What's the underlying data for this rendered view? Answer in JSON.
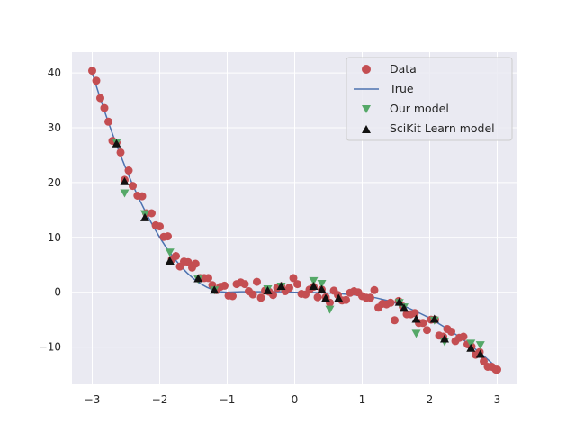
{
  "chart_data": {
    "type": "scatter",
    "title": "",
    "xlabel": "",
    "ylabel": "",
    "xlim": [
      -3.3,
      3.3
    ],
    "ylim": [
      -16.8,
      43.8
    ],
    "grid": true,
    "legend_position": "top-right",
    "x_ticks": [
      -3,
      -2,
      -1,
      0,
      1,
      2,
      3
    ],
    "y_ticks": [
      -10,
      0,
      10,
      20,
      30,
      40
    ],
    "x_tick_labels": [
      "−3",
      "−2",
      "−1",
      "0",
      "1",
      "2",
      "3"
    ],
    "y_tick_labels": [
      "−10",
      "0",
      "10",
      "20",
      "30",
      "40"
    ],
    "colors": {
      "plot_bg": "#eaeaf2",
      "grid": "#ffffff",
      "data": "#c44e52",
      "true": "#4c72b0",
      "ours": "#55a868",
      "sklearn": "#111111"
    },
    "legend": [
      {
        "key": "data",
        "label": "Data",
        "marker": "circle"
      },
      {
        "key": "true",
        "label": "True",
        "marker": "line"
      },
      {
        "key": "ours",
        "label": "Our model",
        "marker": "triangle-down"
      },
      {
        "key": "sklearn",
        "label": "SciKit Learn model",
        "marker": "triangle-up"
      }
    ],
    "series": [
      {
        "key": "data",
        "marker": "circle",
        "points": [
          [
            -3.0,
            40.4
          ],
          [
            -2.94,
            38.6
          ],
          [
            -2.88,
            35.4
          ],
          [
            -2.82,
            33.6
          ],
          [
            -2.76,
            31.1
          ],
          [
            -2.7,
            27.6
          ],
          [
            -2.64,
            27.3
          ],
          [
            -2.58,
            25.5
          ],
          [
            -2.52,
            20.5
          ],
          [
            -2.46,
            22.2
          ],
          [
            -2.4,
            19.4
          ],
          [
            -2.33,
            17.6
          ],
          [
            -2.26,
            17.5
          ],
          [
            -2.2,
            14.4
          ],
          [
            -2.12,
            14.4
          ],
          [
            -2.06,
            12.2
          ],
          [
            -2.0,
            12.0
          ],
          [
            -1.94,
            10.1
          ],
          [
            -1.88,
            10.2
          ],
          [
            -1.82,
            6.0
          ],
          [
            -1.76,
            6.6
          ],
          [
            -1.7,
            4.7
          ],
          [
            -1.64,
            5.6
          ],
          [
            -1.58,
            5.5
          ],
          [
            -1.52,
            4.5
          ],
          [
            -1.47,
            5.2
          ],
          [
            -1.4,
            2.6
          ],
          [
            -1.34,
            2.6
          ],
          [
            -1.28,
            2.6
          ],
          [
            -1.22,
            1.3
          ],
          [
            -1.16,
            0.4
          ],
          [
            -1.1,
            1.0
          ],
          [
            -1.04,
            1.2
          ],
          [
            -0.98,
            -0.6
          ],
          [
            -0.92,
            -0.7
          ],
          [
            -0.86,
            1.5
          ],
          [
            -0.8,
            1.8
          ],
          [
            -0.74,
            1.5
          ],
          [
            -0.68,
            0.2
          ],
          [
            -0.62,
            -0.4
          ],
          [
            -0.56,
            1.9
          ],
          [
            -0.5,
            -1.0
          ],
          [
            -0.44,
            0.3
          ],
          [
            -0.38,
            0.1
          ],
          [
            -0.32,
            -0.5
          ],
          [
            -0.26,
            0.8
          ],
          [
            -0.2,
            1.1
          ],
          [
            -0.14,
            0.2
          ],
          [
            -0.08,
            0.8
          ],
          [
            -0.02,
            2.6
          ],
          [
            0.04,
            1.5
          ],
          [
            0.1,
            -0.3
          ],
          [
            0.16,
            -0.4
          ],
          [
            0.22,
            0.5
          ],
          [
            0.28,
            1.0
          ],
          [
            0.34,
            -0.9
          ],
          [
            0.4,
            0.5
          ],
          [
            0.46,
            -0.9
          ],
          [
            0.52,
            -1.9
          ],
          [
            0.58,
            0.3
          ],
          [
            0.64,
            -0.5
          ],
          [
            0.7,
            -1.5
          ],
          [
            0.76,
            -1.4
          ],
          [
            0.82,
            -0.1
          ],
          [
            0.88,
            0.2
          ],
          [
            0.94,
            0.0
          ],
          [
            1.0,
            -0.7
          ],
          [
            1.06,
            -1.0
          ],
          [
            1.12,
            -1.0
          ],
          [
            1.18,
            0.4
          ],
          [
            1.24,
            -2.8
          ],
          [
            1.3,
            -2.1
          ],
          [
            1.36,
            -2.2
          ],
          [
            1.42,
            -1.9
          ],
          [
            1.48,
            -5.1
          ],
          [
            1.54,
            -1.6
          ],
          [
            1.6,
            -2.6
          ],
          [
            1.66,
            -4.0
          ],
          [
            1.72,
            -4.0
          ],
          [
            1.78,
            -3.8
          ],
          [
            1.84,
            -5.6
          ],
          [
            1.9,
            -5.6
          ],
          [
            1.96,
            -6.9
          ],
          [
            2.02,
            -5.0
          ],
          [
            2.08,
            -5.0
          ],
          [
            2.14,
            -7.9
          ],
          [
            2.2,
            -8.1
          ],
          [
            2.26,
            -6.7
          ],
          [
            2.32,
            -7.2
          ],
          [
            2.38,
            -8.9
          ],
          [
            2.44,
            -8.3
          ],
          [
            2.5,
            -8.1
          ],
          [
            2.56,
            -9.5
          ],
          [
            2.62,
            -9.9
          ],
          [
            2.68,
            -11.4
          ],
          [
            2.74,
            -10.9
          ],
          [
            2.8,
            -12.6
          ],
          [
            2.86,
            -13.6
          ],
          [
            2.92,
            -13.6
          ],
          [
            2.98,
            -14.1
          ],
          [
            3.0,
            -14.1
          ]
        ]
      },
      {
        "key": "true",
        "marker": "line",
        "points": [
          [
            -3.0,
            40.0
          ],
          [
            -2.9,
            36.1
          ],
          [
            -2.8,
            32.4
          ],
          [
            -2.7,
            28.9
          ],
          [
            -2.6,
            25.6
          ],
          [
            -2.5,
            22.5
          ],
          [
            -2.4,
            19.6
          ],
          [
            -2.3,
            16.9
          ],
          [
            -2.2,
            14.4
          ],
          [
            -2.1,
            12.1
          ],
          [
            -2.0,
            10.0
          ],
          [
            -1.9,
            8.1
          ],
          [
            -1.8,
            6.4
          ],
          [
            -1.7,
            4.9
          ],
          [
            -1.6,
            3.6
          ],
          [
            -1.5,
            2.5
          ],
          [
            -1.4,
            1.6
          ],
          [
            -1.3,
            0.9
          ],
          [
            -1.2,
            0.4
          ],
          [
            -1.1,
            0.1
          ],
          [
            -1.0,
            0.0
          ],
          [
            -0.8,
            0.1
          ],
          [
            -0.6,
            0.1
          ],
          [
            -0.4,
            0.1
          ],
          [
            -0.2,
            0.1
          ],
          [
            0.0,
            0.0
          ],
          [
            0.2,
            0.0
          ],
          [
            0.4,
            -0.1
          ],
          [
            0.6,
            -0.2
          ],
          [
            0.8,
            -0.4
          ],
          [
            1.0,
            -0.6
          ],
          [
            1.2,
            -1.0
          ],
          [
            1.4,
            -1.6
          ],
          [
            1.6,
            -2.4
          ],
          [
            1.8,
            -3.5
          ],
          [
            2.0,
            -4.7
          ],
          [
            2.2,
            -6.2
          ],
          [
            2.4,
            -7.8
          ],
          [
            2.6,
            -9.6
          ],
          [
            2.8,
            -11.6
          ],
          [
            3.0,
            -13.8
          ]
        ]
      },
      {
        "key": "ours",
        "marker": "triangle-down",
        "points": [
          [
            -2.64,
            27.3
          ],
          [
            -2.52,
            18.1
          ],
          [
            -2.22,
            14.3
          ],
          [
            -1.85,
            7.3
          ],
          [
            -1.43,
            2.4
          ],
          [
            -1.19,
            0.4
          ],
          [
            -0.4,
            0.6
          ],
          [
            -0.2,
            1.1
          ],
          [
            0.28,
            2.1
          ],
          [
            0.4,
            1.6
          ],
          [
            0.52,
            -3.1
          ],
          [
            1.55,
            -1.9
          ],
          [
            1.62,
            -2.7
          ],
          [
            1.8,
            -7.5
          ],
          [
            2.07,
            -5.1
          ],
          [
            2.22,
            -9.0
          ],
          [
            2.61,
            -9.3
          ],
          [
            2.75,
            -9.6
          ]
        ]
      },
      {
        "key": "sklearn",
        "marker": "triangle-up",
        "points": [
          [
            -2.64,
            27.1
          ],
          [
            -2.52,
            20.2
          ],
          [
            -2.22,
            13.6
          ],
          [
            -1.85,
            5.7
          ],
          [
            -1.43,
            2.5
          ],
          [
            -1.19,
            0.4
          ],
          [
            -0.4,
            0.3
          ],
          [
            -0.2,
            1.1
          ],
          [
            0.28,
            1.1
          ],
          [
            0.4,
            0.5
          ],
          [
            0.46,
            -1.1
          ],
          [
            0.65,
            -1.1
          ],
          [
            1.55,
            -1.8
          ],
          [
            1.62,
            -2.9
          ],
          [
            1.8,
            -4.9
          ],
          [
            2.07,
            -4.9
          ],
          [
            2.22,
            -8.5
          ],
          [
            2.61,
            -10.2
          ],
          [
            2.75,
            -11.3
          ]
        ]
      }
    ]
  }
}
